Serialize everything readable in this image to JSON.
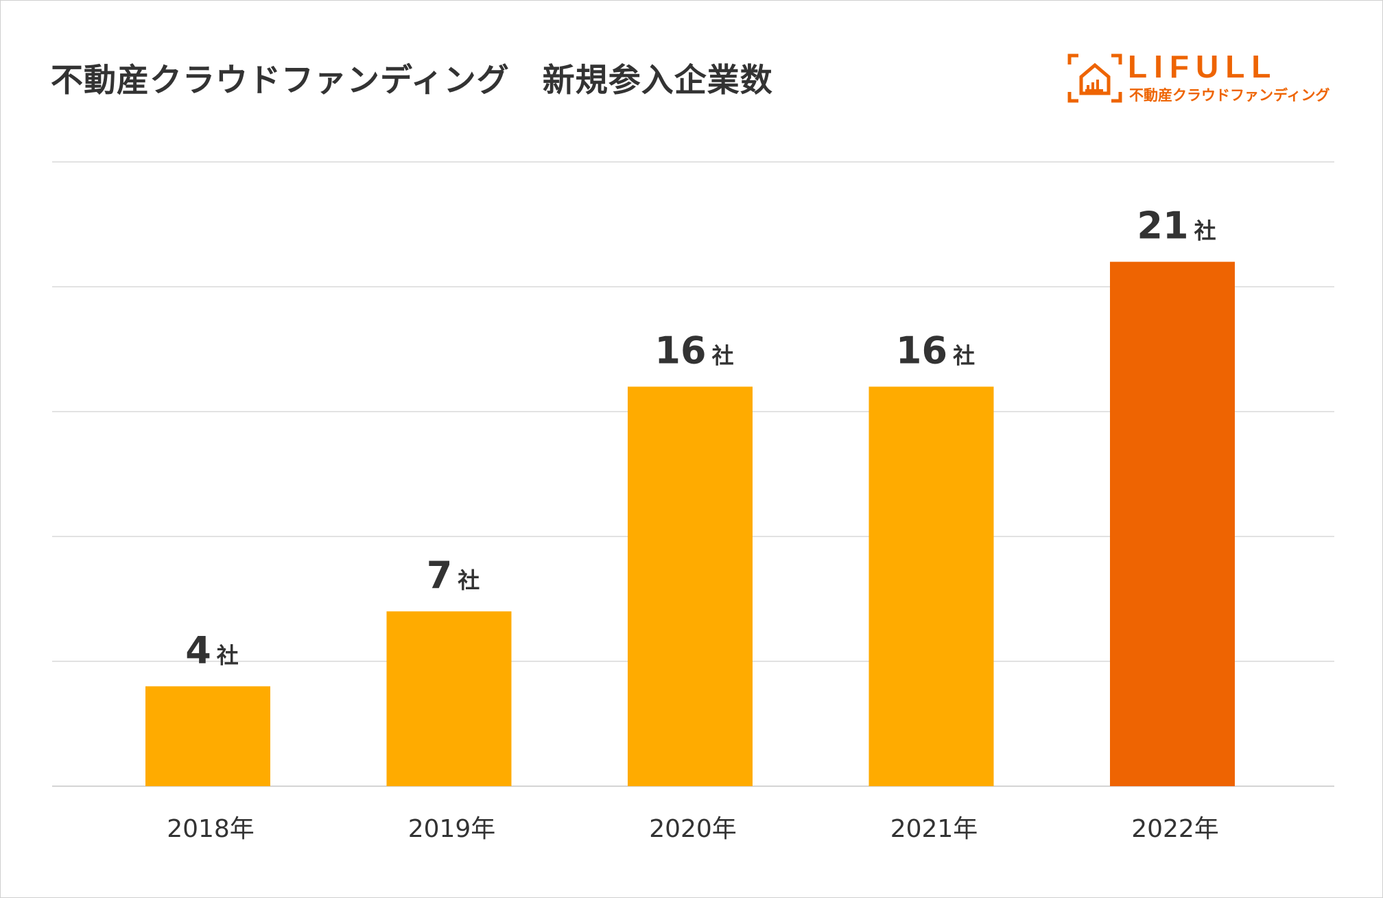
{
  "chart_data": {
    "type": "bar",
    "title": "不動産クラウドファンディング　新規参入企業数",
    "categories": [
      "2018年",
      "2019年",
      "2020年",
      "2021年",
      "2022年"
    ],
    "values": [
      4,
      7,
      16,
      16,
      21
    ],
    "data_labels": [
      "4",
      "7",
      "16",
      "16",
      "21"
    ],
    "unit_label": "社",
    "xlabel": "",
    "ylabel": "",
    "ylim": [
      0,
      25
    ],
    "grid": true,
    "grid_step": 5,
    "colors": [
      "#FFAB00",
      "#FFAB00",
      "#FFAB00",
      "#FFAB00",
      "#EE6402"
    ]
  },
  "logo": {
    "name": "LIFULL",
    "subtitle": "不動産クラウドファンディング",
    "color": "#EE6402"
  }
}
